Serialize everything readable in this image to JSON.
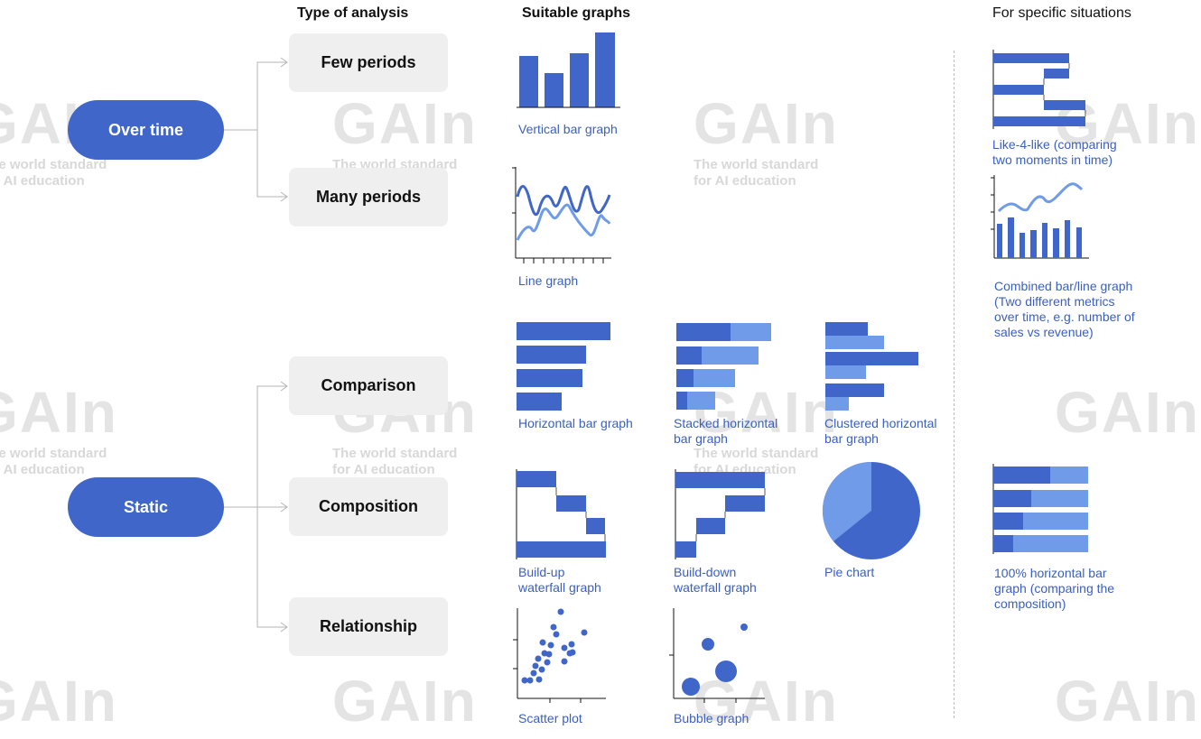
{
  "headers": {
    "type_of_analysis": "Type of analysis",
    "suitable_graphs": "Suitable graphs",
    "specific_situations": "For specific situations"
  },
  "categories": {
    "over_time": "Over time",
    "static": "Static"
  },
  "analysis_types": {
    "few_periods": "Few periods",
    "many_periods": "Many periods",
    "comparison": "Comparison",
    "composition": "Composition",
    "relationship": "Relationship"
  },
  "graphs": {
    "vertical_bar": "Vertical bar graph",
    "line": "Line graph",
    "horizontal_bar": "Horizontal bar graph",
    "stacked_horizontal": "Stacked horizontal\nbar graph",
    "clustered_horizontal": "Clustered horizontal\nbar graph",
    "buildup_waterfall": "Build-up\nwaterfall graph",
    "builddown_waterfall": "Build-down\nwaterfall graph",
    "pie": "Pie chart",
    "scatter": "Scatter plot",
    "bubble": "Bubble graph"
  },
  "special_graphs": {
    "like4like": "Like-4-like (comparing\ntwo moments in time)",
    "combined": "Combined bar/line graph\n(Two different metrics\nover time, e.g. number of\nsales vs revenue)",
    "hundred_pct": "100% horizontal bar\ngraph (comparing the\ncomposition)"
  },
  "watermark": {
    "logo": "GAIn",
    "tagline": "The world standard\nfor AI education"
  },
  "colors": {
    "primary": "#3f66c8",
    "secondary": "#6f9be8",
    "box": "#efefef"
  }
}
